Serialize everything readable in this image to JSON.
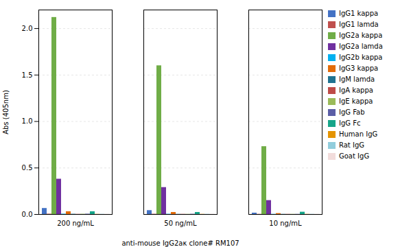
{
  "chart_data": {
    "type": "bar",
    "categories": [
      "200 ng/mL",
      "50 ng/mL",
      "10 ng/mL"
    ],
    "series": [
      {
        "name": "IgG1 kappa",
        "color": "#4472C4",
        "values": [
          0.065,
          0.042,
          0.015
        ]
      },
      {
        "name": "IgG1 lamda",
        "color": "#C0504D",
        "values": [
          0.004,
          0.003,
          0.002
        ]
      },
      {
        "name": "IgG2a kappa",
        "color": "#70AD47",
        "values": [
          2.12,
          1.6,
          0.73
        ]
      },
      {
        "name": "IgG2a lamda",
        "color": "#7030A0",
        "values": [
          0.38,
          0.29,
          0.15
        ]
      },
      {
        "name": "IgG2b kappa",
        "color": "#00B0F0",
        "values": [
          0.004,
          0.003,
          0.002
        ]
      },
      {
        "name": "IgG3 kappa",
        "color": "#E36C09",
        "values": [
          0.03,
          0.022,
          0.01
        ]
      },
      {
        "name": "IgM lamda",
        "color": "#1F7391",
        "values": [
          0.003,
          0.002,
          0.002
        ]
      },
      {
        "name": "IgA kappa",
        "color": "#BE4B48",
        "values": [
          0.002,
          0.002,
          0.002
        ]
      },
      {
        "name": "IgE kappa",
        "color": "#9BBB59",
        "values": [
          0.003,
          0.002,
          0.002
        ]
      },
      {
        "name": "IgG Fab",
        "color": "#5B5EA6",
        "values": [
          0.004,
          0.003,
          0.002
        ]
      },
      {
        "name": "IgG Fc",
        "color": "#17A589",
        "values": [
          0.03,
          0.022,
          0.025
        ]
      },
      {
        "name": "Human IgG",
        "color": "#E59400",
        "values": [
          0.002,
          0.002,
          0.002
        ]
      },
      {
        "name": "Rat IgG",
        "color": "#92CDDC",
        "values": [
          0.002,
          0.002,
          0.002
        ]
      },
      {
        "name": "Goat IgG",
        "color": "#F2DCDB",
        "values": [
          0.002,
          0.002,
          0.002
        ]
      }
    ],
    "xlabel": "anti-mouse IgG2aκ clone# RM107",
    "ylabel": "Abs (405nm)",
    "ylim": [
      0,
      2.2
    ],
    "yticks": [
      {
        "value": 0,
        "label": "0.0"
      },
      0.5,
      {
        "value": 1.0,
        "label": "1.0"
      },
      1.5,
      {
        "value": 2.0,
        "label": "2.0"
      }
    ],
    "grid": true,
    "legend": "right"
  }
}
